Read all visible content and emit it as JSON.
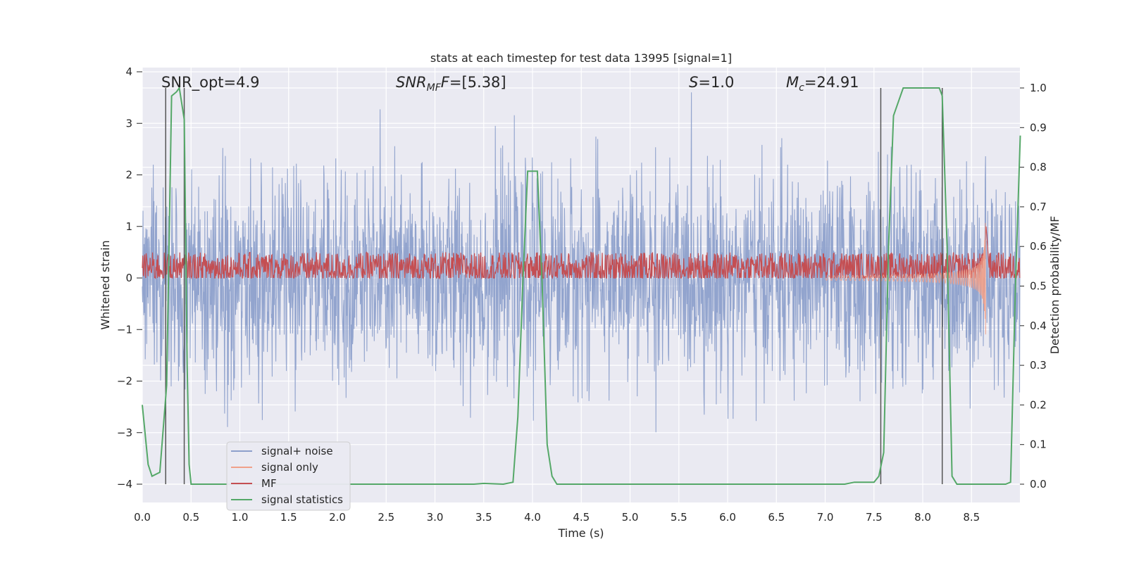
{
  "chart_data": {
    "type": "line",
    "title": "stats at each timestep for test data 13995 [signal=1]",
    "xlabel": "Time (s)",
    "ylabel_left": "Whitened strain",
    "ylabel_right": "Detection probability/MF",
    "xlim": [
      0.0,
      9.0
    ],
    "ylim_left": [
      -4.35,
      4.05
    ],
    "ylim_right": [
      -0.048,
      1.04
    ],
    "x_ticks": [
      "0.0",
      "0.5",
      "1.0",
      "1.5",
      "2.0",
      "2.5",
      "3.0",
      "3.5",
      "4.0",
      "4.5",
      "5.0",
      "5.5",
      "6.0",
      "6.5",
      "7.0",
      "7.5",
      "8.0",
      "8.5"
    ],
    "y_left_ticks": [
      "4",
      "3",
      "2",
      "1",
      "0",
      "−1",
      "−2",
      "−3",
      "−4"
    ],
    "y_right_ticks": [
      "1.0",
      "0.9",
      "0.8",
      "0.7",
      "0.6",
      "0.5",
      "0.4",
      "0.3",
      "0.2",
      "0.1",
      "0.0"
    ],
    "grid": true,
    "legend_position": "lower-left",
    "annotations": {
      "snr_opt": "SNR_opt=4.9",
      "snr_mf_main": "SNR",
      "snr_mf_sub": "MF",
      "snr_mf_rest": "=[5.38]",
      "s_main": "S",
      "s_rest": "=1.0",
      "mc_main": "M",
      "mc_sub": "c",
      "mc_rest": "=24.91"
    },
    "series": [
      {
        "name": "signal+ noise",
        "color": "#8da0cb",
        "noise_amplitude": 1.6,
        "axis": "left"
      },
      {
        "name": "signal only",
        "color": "#f0a08a",
        "axis": "left",
        "chirp_end_s": 8.65,
        "chirp_min": -1.1
      },
      {
        "name": "MF",
        "color": "#c44e52",
        "axis": "left",
        "baseline": 0.2,
        "amplitude": 0.3,
        "peak_time": 8.65,
        "peak_value": 1.0
      },
      {
        "name": "signal statistics",
        "color": "#55a868",
        "axis": "right",
        "x": [
          0.0,
          0.06,
          0.1,
          0.18,
          0.25,
          0.3,
          0.35,
          0.38,
          0.43,
          0.46,
          0.48,
          0.5,
          0.6,
          1.0,
          1.5,
          2.0,
          2.5,
          3.0,
          3.4,
          3.5,
          3.7,
          3.8,
          3.85,
          3.9,
          3.95,
          4.0,
          4.05,
          4.1,
          4.15,
          4.2,
          4.25,
          4.3,
          5.0,
          6.0,
          7.0,
          7.2,
          7.3,
          7.4,
          7.5,
          7.55,
          7.6,
          7.65,
          7.7,
          7.8,
          8.0,
          8.17,
          8.2,
          8.25,
          8.3,
          8.35,
          8.5,
          8.85,
          8.9,
          8.95,
          9.0
        ],
        "y": [
          0.2,
          0.05,
          0.02,
          0.03,
          0.25,
          0.98,
          0.99,
          1.0,
          0.92,
          0.3,
          0.05,
          0.0,
          0.0,
          0.0,
          0.0,
          0.0,
          0.0,
          0.0,
          0.0,
          0.002,
          0.0,
          0.005,
          0.17,
          0.5,
          0.79,
          0.79,
          0.79,
          0.5,
          0.1,
          0.02,
          0.0,
          0.0,
          0.0,
          0.0,
          0.0,
          0.0,
          0.005,
          0.005,
          0.005,
          0.02,
          0.08,
          0.6,
          0.93,
          1.0,
          1.0,
          1.0,
          0.98,
          0.6,
          0.02,
          0.0,
          0.0,
          0.0,
          0.005,
          0.5,
          0.88
        ]
      }
    ],
    "vertical_lines_s": [
      0.24,
      0.43,
      7.57,
      8.2
    ]
  }
}
